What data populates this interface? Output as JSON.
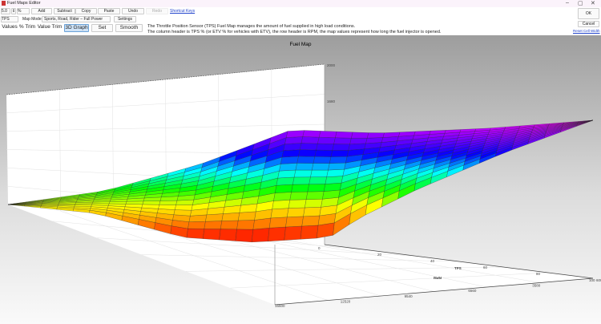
{
  "window": {
    "title": "Fuel Maps Editor",
    "minimize": "–",
    "restore": "▢",
    "close": "✕"
  },
  "toolbar": {
    "step_value": "5.0",
    "unit": "%",
    "add": "Add",
    "subtract": "Subtract",
    "copy": "Copy",
    "paste": "Paste",
    "undo": "Undo",
    "redo": "Redo",
    "shortcut_keys": "Shortcut Keys"
  },
  "row2": {
    "map_select": "TPS",
    "map_mode_label": "Map Mode",
    "map_mode_value": "Sports, Road, Rider – Full Power",
    "settings": "Settings"
  },
  "row3": {
    "values": "Values",
    "pct_trim": "% Trim",
    "value_trim": "Value Trim",
    "graph": "3D Graph",
    "set": "Set",
    "smooth": "Smooth"
  },
  "description": {
    "line1": "The Throttle Position Sensor (TPS) Fuel Map manages the amount of fuel supplied in high load conditions.",
    "line2": "The column header is TPS % (or ETV % for vehicles with ETV), the row header is RPM, the map values represent how long the fuel injector is opened."
  },
  "side": {
    "ok": "OK",
    "cancel": "Cancel",
    "reset_cell_width": "Reset Cell Width"
  },
  "chart_data": {
    "type": "surface",
    "title": "Fuel Map",
    "xlabel": "TPS",
    "ylabel": "RPM",
    "x_ticks": [
      "0",
      "20",
      "40",
      "60",
      "80",
      "100"
    ],
    "y_ticks": [
      "15500",
      "12520",
      "9540",
      "6560",
      "3580",
      "600"
    ],
    "z_ticks": [
      "2000",
      "1680"
    ],
    "colormap": [
      "#ff0000",
      "#ff8000",
      "#ffff00",
      "#00ff00",
      "#00ffff",
      "#0000ff",
      "#8000ff",
      "#ff00ff"
    ]
  }
}
